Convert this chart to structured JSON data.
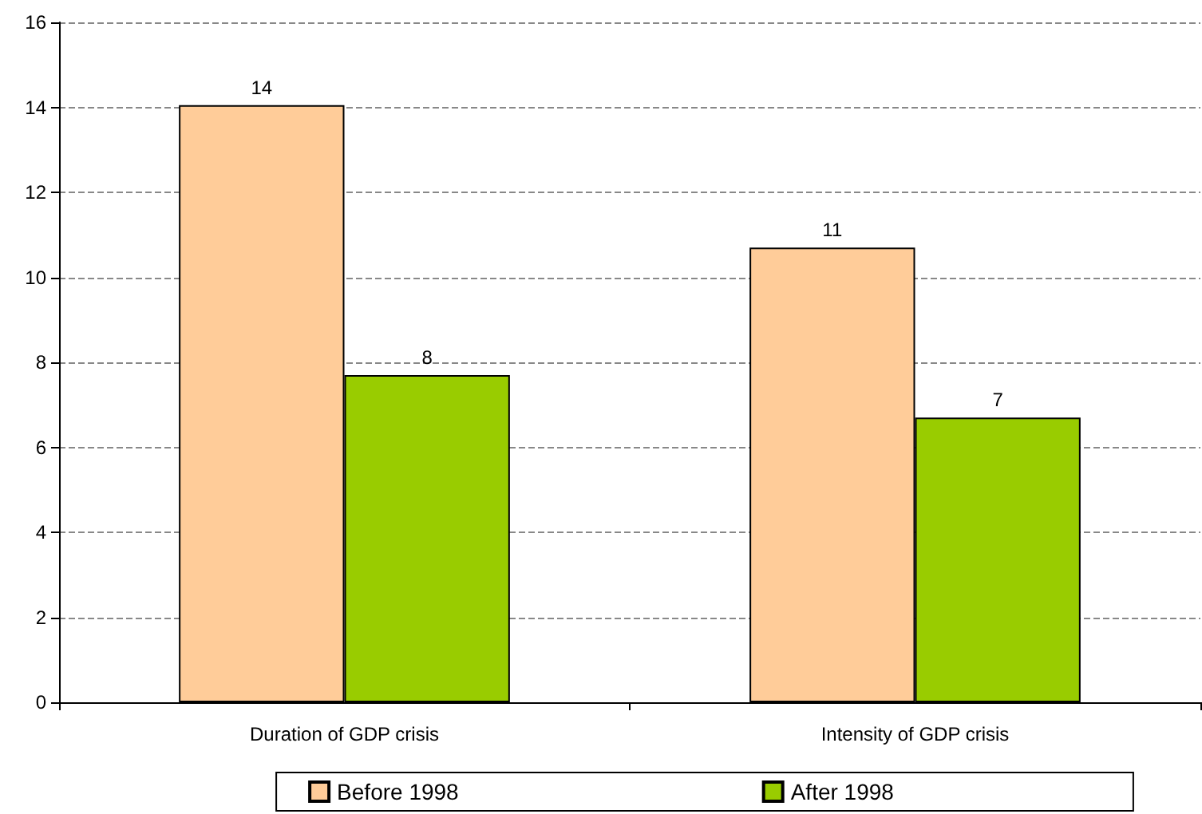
{
  "chart_data": {
    "type": "bar",
    "categories": [
      "Duration of GDP crisis",
      "Intensity of GDP crisis"
    ],
    "series": [
      {
        "name": "Before 1998",
        "color": "#ffcc99",
        "values": [
          14.05,
          10.7
        ],
        "value_labels": [
          "14",
          "11"
        ]
      },
      {
        "name": "After 1998",
        "color": "#99cc00",
        "values": [
          7.7,
          6.7
        ],
        "value_labels": [
          "8",
          "7"
        ]
      }
    ],
    "ylim": [
      0,
      16
    ],
    "yticks": [
      0,
      2,
      4,
      6,
      8,
      10,
      12,
      14,
      16
    ],
    "grid": "y",
    "legend": "bottom"
  }
}
